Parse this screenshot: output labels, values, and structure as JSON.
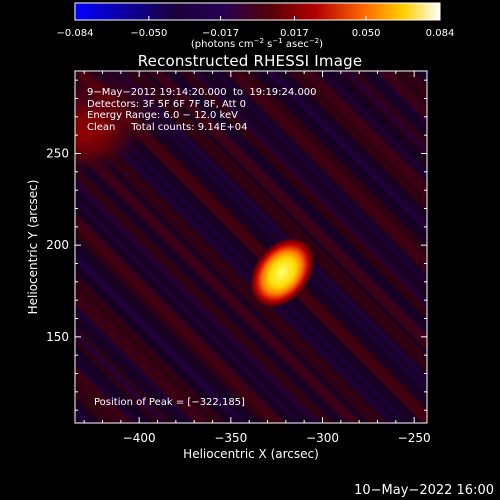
{
  "colors": {
    "background": "#000000",
    "text": "#ffffff",
    "bright": "#ffff80"
  },
  "chart_data": {
    "type": "heatmap",
    "title": "Reconstructed RHESSI Image",
    "xlabel": "Heliocentric X (arcsec)",
    "ylabel": "Heliocentric Y (arcsec)",
    "xlim": [
      -435,
      -243
    ],
    "ylim": [
      103,
      295
    ],
    "xticks": [
      -400,
      -350,
      -300,
      -250
    ],
    "yticks": [
      150,
      200,
      250
    ],
    "xtick_labels": [
      "−400",
      "−350",
      "−300",
      "−250"
    ],
    "ytick_labels": [
      "150",
      "200",
      "250"
    ],
    "colorbar": {
      "min": -0.084,
      "max": 0.084,
      "ticks": [
        -0.084,
        -0.05,
        -0.017,
        0.017,
        0.05,
        0.084
      ],
      "tick_labels": [
        "−0.084",
        "−0.050",
        "−0.017",
        "0.017",
        "0.050",
        "0.084"
      ],
      "unit_base": "(photons cm",
      "unit_sup1": "−2",
      "unit_mid": " s",
      "unit_sup2": "−1",
      "unit_mid2": " asec",
      "unit_sup3": "−2",
      "unit_end": ")"
    },
    "peak_position": [
      -322,
      185
    ],
    "annotations": {
      "time_range": "9−May−2012 19:14:20.000  to  19:19:24.000",
      "detectors": "Detectors: 3F 5F 6F 7F 8F, Att 0",
      "energy_range": "Energy Range: 6.0 − 12.0 keV",
      "clean_counts": "Clean     Total counts: 9.14E+04",
      "peak_text": "Position of Peak = [−322,185]"
    }
  },
  "footer": {
    "timestamp": "10−May−2022 16:00"
  }
}
